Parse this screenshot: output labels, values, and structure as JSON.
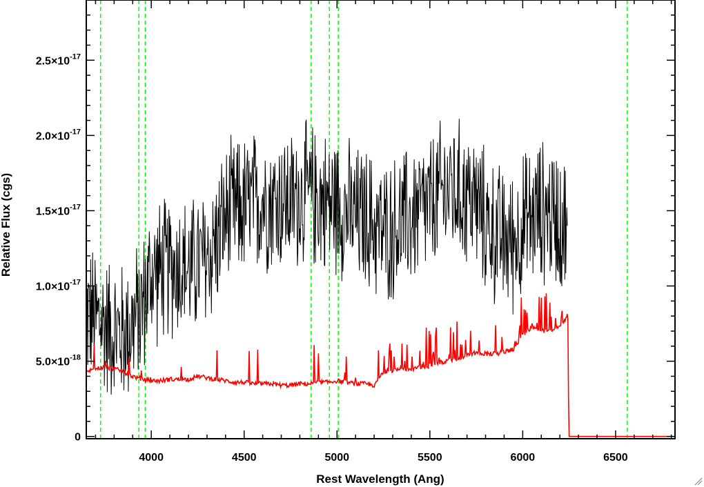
{
  "chart_data": {
    "type": "line",
    "xlabel": "Rest Wavelength (Ang)",
    "ylabel": "Relative Flux (cgs)",
    "xlim": [
      3650,
      6820
    ],
    "ylim": [
      -1.5e-19,
      2.9e-17
    ],
    "x_ticks": [
      {
        "value": 4000,
        "label": "4000"
      },
      {
        "value": 4500,
        "label": "4500"
      },
      {
        "value": 5000,
        "label": "5000"
      },
      {
        "value": 5500,
        "label": "5500"
      },
      {
        "value": 6000,
        "label": "6000"
      },
      {
        "value": 6500,
        "label": "6500"
      }
    ],
    "y_ticks": [
      {
        "value": 0,
        "mantissa": "0",
        "exponent": ""
      },
      {
        "value": 5e-18,
        "mantissa": "5.0×10",
        "exponent": "-18"
      },
      {
        "value": 1e-17,
        "mantissa": "1.0×10",
        "exponent": "-17"
      },
      {
        "value": 1.5e-17,
        "mantissa": "1.5×10",
        "exponent": "-17"
      },
      {
        "value": 2e-17,
        "mantissa": "2.0×10",
        "exponent": "-17"
      },
      {
        "value": 2.5e-17,
        "mantissa": "2.5×10",
        "exponent": "-17"
      }
    ],
    "series": [
      {
        "color": "#000000",
        "x": [
          3650,
          3700,
          3750,
          3800,
          3850,
          3900,
          3950,
          4000,
          4050,
          4100,
          4150,
          4200,
          4250,
          4300,
          4350,
          4400,
          4450,
          4500,
          4550,
          4600,
          4650,
          4700,
          4750,
          4800,
          4850,
          4900,
          4950,
          5000,
          5050,
          5100,
          5150,
          5200,
          5250,
          5300,
          5350,
          5400,
          5450,
          5500,
          5550,
          5600,
          5650,
          5700,
          5750,
          5800,
          5850,
          5900,
          5950,
          6000,
          6050,
          6100,
          6150,
          6200,
          6240
        ],
        "y": [
          8.2e-18,
          7.8e-18,
          7.5e-18,
          7e-18,
          6.8e-18,
          7.5e-18,
          8.5e-18,
          1.08e-17,
          1.1e-17,
          1.12e-17,
          1.15e-17,
          1.1e-17,
          1.15e-17,
          1.18e-17,
          1.3e-17,
          1.45e-17,
          1.5e-17,
          1.52e-17,
          1.55e-17,
          1.58e-17,
          1.56e-17,
          1.57e-17,
          1.55e-17,
          1.6e-17,
          1.6e-17,
          1.58e-17,
          1.55e-17,
          1.55e-17,
          1.5e-17,
          1.45e-17,
          1.45e-17,
          1.4e-17,
          1.35e-17,
          1.38e-17,
          1.42e-17,
          1.45e-17,
          1.5e-17,
          1.52e-17,
          1.6e-17,
          1.65e-17,
          1.62e-17,
          1.6e-17,
          1.55e-17,
          1.42e-17,
          1.35e-17,
          1.3e-17,
          1.3e-17,
          1.4e-17,
          1.45e-17,
          1.5e-17,
          1.48e-17,
          1.45e-17,
          1.4e-17
        ]
      },
      {
        "color": "#ff0000",
        "x": [
          3650,
          3700,
          3750,
          3800,
          3850,
          3900,
          3950,
          4000,
          4050,
          4100,
          4150,
          4200,
          4250,
          4300,
          4350,
          4400,
          4450,
          4500,
          4550,
          4600,
          4650,
          4700,
          4750,
          4800,
          4850,
          4900,
          4950,
          5000,
          5050,
          5100,
          5150,
          5200,
          5250,
          5300,
          5350,
          5400,
          5450,
          5500,
          5550,
          5600,
          5650,
          5700,
          5750,
          5800,
          5850,
          5900,
          5950,
          6000,
          6050,
          6100,
          6150,
          6200,
          6240,
          6250,
          6820
        ],
        "y": [
          4.3e-18,
          4.5e-18,
          4.6e-18,
          4.5e-18,
          4.3e-18,
          4e-18,
          3.8e-18,
          3.7e-18,
          3.7e-18,
          3.8e-18,
          3.8e-18,
          3.8e-18,
          4e-18,
          3.9e-18,
          3.8e-18,
          3.7e-18,
          3.6e-18,
          3.6e-18,
          3.5e-18,
          3.5e-18,
          3.5e-18,
          3.4e-18,
          3.4e-18,
          3.5e-18,
          3.5e-18,
          3.6e-18,
          3.6e-18,
          3.7e-18,
          3.6e-18,
          3.5e-18,
          3.5e-18,
          3.4e-18,
          4.3e-18,
          4.4e-18,
          4.5e-18,
          4.5e-18,
          4.6e-18,
          4.7e-18,
          4.9e-18,
          5e-18,
          5.2e-18,
          5.4e-18,
          5.6e-18,
          5.5e-18,
          5.5e-18,
          5.6e-18,
          5.8e-18,
          6.8e-18,
          7.2e-18,
          7e-18,
          7e-18,
          7.3e-18,
          8e-18,
          0,
          0
        ]
      }
    ],
    "reference_lines": [
      {
        "x": 3727,
        "color": "#00ff00",
        "style": "dashed"
      },
      {
        "x": 3933,
        "color": "#00ff00",
        "style": "dashed"
      },
      {
        "x": 3968,
        "color": "#00ff00",
        "style": "dashed"
      },
      {
        "x": 4861,
        "color": "#00ff00",
        "style": "dashed"
      },
      {
        "x": 4959,
        "color": "#00ff00",
        "style": "dashed"
      },
      {
        "x": 5007,
        "color": "#00ff00",
        "style": "dashed"
      },
      {
        "x": 6563,
        "color": "#00ff00",
        "style": "dashed"
      }
    ],
    "grid": false,
    "legend": "none"
  }
}
